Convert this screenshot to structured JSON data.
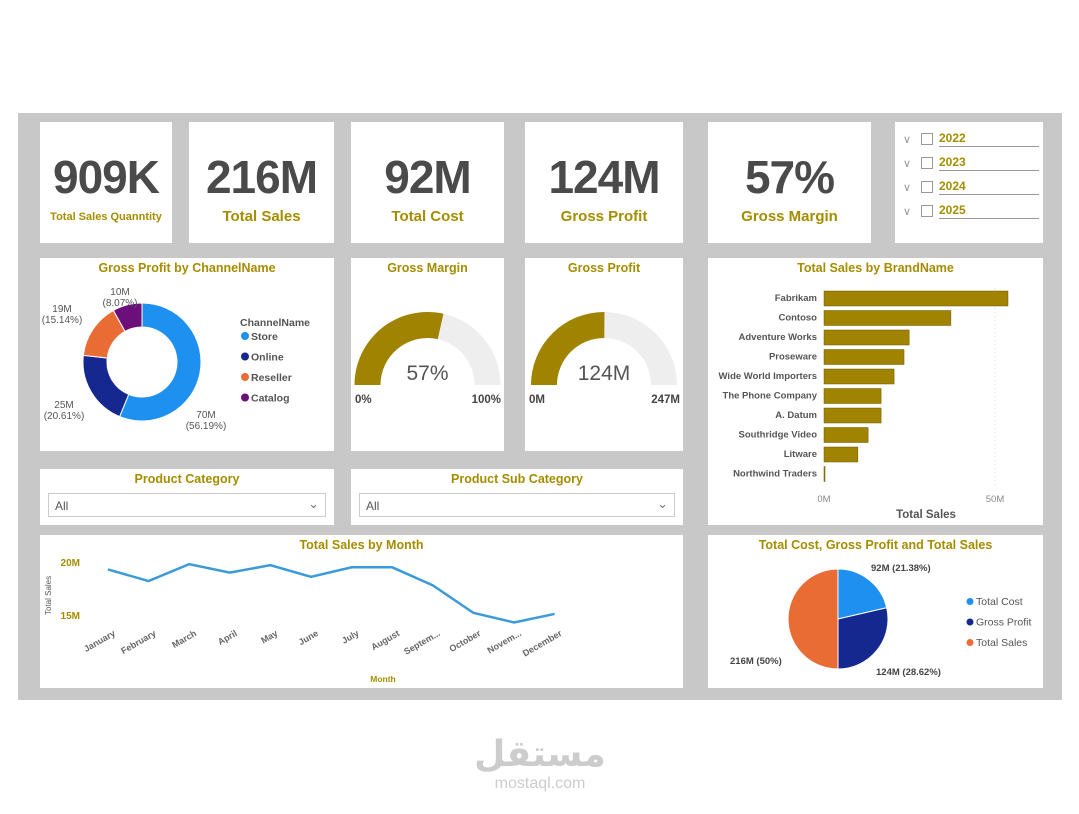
{
  "kpis": [
    {
      "value": "909K",
      "label": "Total Sales Quanntity"
    },
    {
      "value": "216M",
      "label": "Total Sales"
    },
    {
      "value": "92M",
      "label": "Total Cost"
    },
    {
      "value": "124M",
      "label": "Gross Profit"
    },
    {
      "value": "57%",
      "label": "Gross Margin"
    }
  ],
  "years": [
    "2022",
    "2023",
    "2024",
    "2025"
  ],
  "colors": {
    "accent": "#a58d00",
    "bar": "#a08300",
    "line": "#3b9ad9",
    "store": "#1e90f0",
    "online": "#14288f",
    "reseller": "#ea6c35",
    "catalog": "#6b0f7a"
  },
  "donut": {
    "title": "Gross Profit by ChannelName",
    "legend_title": "ChannelName",
    "slices": [
      {
        "name": "Store",
        "value": 70,
        "label": "70M",
        "pct": "(56.19%)",
        "share": 56.19
      },
      {
        "name": "Online",
        "value": 25,
        "label": "25M",
        "pct": "(20.61%)",
        "share": 20.61
      },
      {
        "name": "Reseller",
        "value": 19,
        "label": "19M",
        "pct": "(15.14%)",
        "share": 15.14
      },
      {
        "name": "Catalog",
        "value": 10,
        "label": "10M",
        "pct": "(8.07%)",
        "share": 8.07
      }
    ]
  },
  "gauge_margin": {
    "title": "Gross Margin",
    "value": "57%",
    "min": "0%",
    "max": "100%",
    "fraction": 0.57
  },
  "gauge_profit": {
    "title": "Gross Profit",
    "value": "124M",
    "min": "0M",
    "max": "247M",
    "fraction": 0.502
  },
  "filters": {
    "category": {
      "title": "Product Category",
      "value": "All"
    },
    "subcategory": {
      "title": "Product Sub Category",
      "value": "All"
    }
  },
  "chart_data": [
    {
      "type": "bar",
      "orientation": "horizontal",
      "title": "Total Sales by BrandName",
      "xlabel": "Total Sales",
      "xticks": [
        "0M",
        "50M"
      ],
      "xlim": [
        0,
        60
      ],
      "categories": [
        "Fabrikam",
        "Contoso",
        "Adventure Works",
        "Proseware",
        "Wide World Importers",
        "The Phone Company",
        "A. Datum",
        "Southridge Video",
        "Litware",
        "Northwind Traders"
      ],
      "values": [
        53.8,
        37.1,
        24.9,
        23.4,
        20.5,
        16.7,
        16.7,
        12.9,
        9.9,
        0.3
      ]
    },
    {
      "type": "line",
      "title": "Total Sales by Month",
      "xlabel": "Month",
      "ylabel": "Total Sales",
      "yticks": [
        "20M",
        "15M"
      ],
      "ylim": [
        13.5,
        21
      ],
      "categories": [
        "January",
        "February",
        "March",
        "April",
        "May",
        "June",
        "July",
        "August",
        "Septem...",
        "October",
        "Novem...",
        "December"
      ],
      "values": [
        19.3,
        18.2,
        19.8,
        19.0,
        19.7,
        18.6,
        19.5,
        19.5,
        17.8,
        15.2,
        14.3,
        15.1
      ]
    },
    {
      "type": "pie",
      "title": "Total Cost, Gross Profit and Total Sales",
      "slices": [
        {
          "name": "Total Cost",
          "value": 92,
          "label": "92M (21.38%)",
          "share": 21.38
        },
        {
          "name": "Gross Profit",
          "value": 124,
          "label": "124M (28.62%)",
          "share": 28.62
        },
        {
          "name": "Total Sales",
          "value": 216,
          "label": "216M (50%)",
          "share": 50
        }
      ]
    }
  ],
  "watermark": {
    "arabic": "مستقل",
    "latin": "mostaql.com"
  }
}
